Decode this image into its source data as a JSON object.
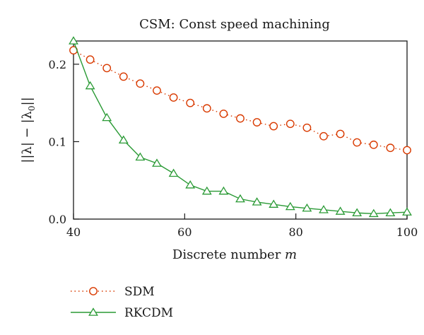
{
  "chart_data": {
    "type": "line",
    "title": "CSM: Const speed machining",
    "xlabel_prefix": "Discrete number ",
    "xlabel_var": "m",
    "ylabel_parts": [
      "||λ| − |λ",
      "0",
      "||"
    ],
    "xlim": [
      40,
      100
    ],
    "ylim": [
      0,
      0.23
    ],
    "xticks": [
      40,
      60,
      80,
      100
    ],
    "yticks": [
      0.0,
      0.1,
      0.2
    ],
    "ytick_labels": [
      "0.0",
      "0.1",
      "0.2"
    ],
    "grid": false,
    "legend_position": "bottom-left",
    "x": [
      40,
      43,
      46,
      49,
      52,
      55,
      58,
      61,
      64,
      67,
      70,
      73,
      76,
      79,
      82,
      85,
      88,
      91,
      94,
      97,
      100
    ],
    "series": [
      {
        "name": "SDM",
        "color": "#d93a00",
        "marker": "circle",
        "linestyle": "dotted",
        "values": [
          0.218,
          0.206,
          0.195,
          0.184,
          0.175,
          0.166,
          0.157,
          0.15,
          0.143,
          0.136,
          0.13,
          0.125,
          0.12,
          0.123,
          0.118,
          0.107,
          0.11,
          0.099,
          0.096,
          0.092,
          0.089
        ]
      },
      {
        "name": "RKCDM",
        "color": "#2a9a35",
        "marker": "triangle",
        "linestyle": "solid",
        "values": [
          0.23,
          0.172,
          0.131,
          0.102,
          0.08,
          0.072,
          0.059,
          0.044,
          0.036,
          0.036,
          0.026,
          0.022,
          0.019,
          0.016,
          0.014,
          0.012,
          0.01,
          0.008,
          0.007,
          0.008,
          0.009
        ]
      }
    ]
  }
}
